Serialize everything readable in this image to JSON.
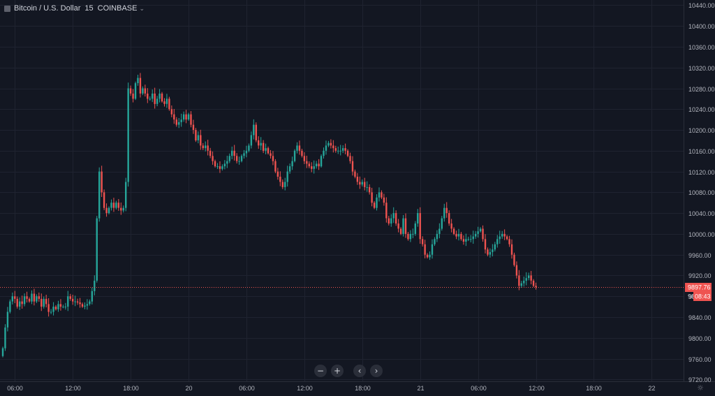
{
  "legend": {
    "symbol": "Bitcoin / U.S. Dollar",
    "interval": "15",
    "exchange": "COINBASE"
  },
  "price_label": {
    "price": "9897.76",
    "countdown": "08:43",
    "partial_tick": "98"
  },
  "controls": {
    "zoom_out": "−",
    "zoom_in": "+",
    "scroll_left": "‹",
    "scroll_right": "›"
  },
  "colors": {
    "background": "#131722",
    "grid": "#1f2330",
    "up": "#26a69a",
    "down": "#ef5350",
    "price_line": "#ef5350",
    "axis_text": "#b2b5be"
  },
  "chart_data": {
    "type": "candlestick",
    "symbol": "Bitcoin / U.S. Dollar",
    "interval_minutes": 15,
    "exchange": "COINBASE",
    "last_price": 9897.76,
    "ylim": [
      9715,
      10450
    ],
    "y_ticks": [
      9720,
      9760,
      9800,
      9840,
      9880,
      9920,
      9960,
      10000,
      10040,
      10080,
      10120,
      10160,
      10200,
      10240,
      10280,
      10320,
      10360,
      10400,
      10440
    ],
    "y_tick_labels": [
      "9720.00",
      "9760.00",
      "9800.00",
      "9840.00",
      "9880.00",
      "9920.00",
      "9960.00",
      "10000.00",
      "10040.00",
      "10080.00",
      "10120.00",
      "10160.00",
      "10200.00",
      "10240.00",
      "10280.00",
      "10320.00",
      "10360.00",
      "10400.00",
      "10440.00"
    ],
    "x_ticks": [
      {
        "label": "06:00",
        "bar": 5
      },
      {
        "label": "12:00",
        "bar": 29
      },
      {
        "label": "18:00",
        "bar": 53
      },
      {
        "label": "20",
        "bar": 77
      },
      {
        "label": "06:00",
        "bar": 101
      },
      {
        "label": "12:00",
        "bar": 125
      },
      {
        "label": "18:00",
        "bar": 149
      },
      {
        "label": "21",
        "bar": 173
      },
      {
        "label": "06:00",
        "bar": 197
      },
      {
        "label": "12:00",
        "bar": 221
      },
      {
        "label": "18:00",
        "bar": 245
      },
      {
        "label": "22",
        "bar": 269
      }
    ],
    "close_series": [
      9780,
      9820,
      9850,
      9870,
      9880,
      9875,
      9860,
      9870,
      9865,
      9880,
      9875,
      9870,
      9885,
      9870,
      9880,
      9875,
      9860,
      9875,
      9865,
      9850,
      9850,
      9860,
      9855,
      9865,
      9860,
      9860,
      9860,
      9880,
      9875,
      9870,
      9870,
      9868,
      9865,
      9860,
      9862,
      9865,
      9870,
      9890,
      9910,
      10030,
      10120,
      10080,
      10050,
      10040,
      10050,
      10060,
      10050,
      10060,
      10050,
      10045,
      10050,
      10100,
      10280,
      10270,
      10260,
      10290,
      10300,
      10270,
      10280,
      10270,
      10260,
      10260,
      10270,
      10250,
      10260,
      10270,
      10255,
      10250,
      10260,
      10240,
      10230,
      10220,
      10210,
      10215,
      10220,
      10230,
      10220,
      10230,
      10210,
      10200,
      10180,
      10190,
      10170,
      10165,
      10170,
      10160,
      10150,
      10140,
      10130,
      10130,
      10125,
      10130,
      10135,
      10140,
      10150,
      10160,
      10150,
      10140,
      10140,
      10150,
      10155,
      10160,
      10170,
      10190,
      10210,
      10180,
      10170,
      10175,
      10160,
      10165,
      10155,
      10150,
      10140,
      10120,
      10110,
      10100,
      10090,
      10100,
      10120,
      10130,
      10140,
      10160,
      10170,
      10160,
      10150,
      10140,
      10135,
      10130,
      10125,
      10130,
      10135,
      10130,
      10150,
      10160,
      10170,
      10175,
      10170,
      10165,
      10160,
      10160,
      10160,
      10165,
      10160,
      10150,
      10140,
      10120,
      10110,
      10100,
      10095,
      10100,
      10090,
      10090,
      10080,
      10060,
      10050,
      10070,
      10080,
      10070,
      10060,
      10030,
      10020,
      10030,
      10040,
      10020,
      10010,
      10000,
      10030,
      10000,
      9990,
      10000,
      10000,
      10020,
      10040,
      9990,
      9980,
      9960,
      9955,
      9960,
      9980,
      9990,
      10000,
      10010,
      10030,
      10050,
      10040,
      10020,
      10010,
      10000,
      9995,
      10000,
      9990,
      9985,
      9990,
      9990,
      9990,
      9995,
      10000,
      10005,
      10010,
      9990,
      9970,
      9960,
      9965,
      9970,
      9980,
      9990,
      9995,
      10000,
      9995,
      9990,
      9980,
      9960,
      9940,
      9920,
      9900,
      9905,
      9910,
      9915,
      9920,
      9910,
      9900,
      9897.76
    ]
  }
}
